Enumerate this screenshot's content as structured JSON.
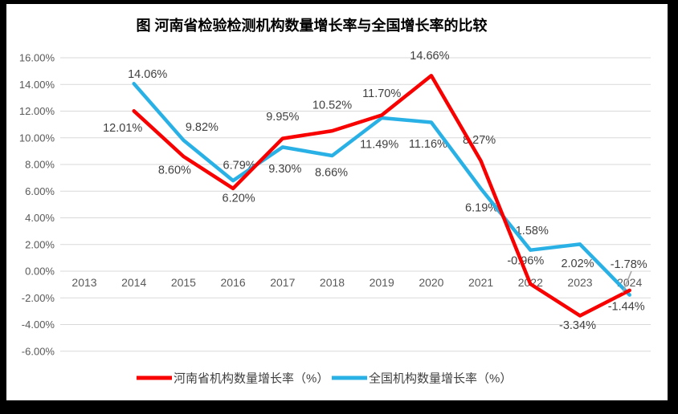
{
  "title": "图  河南省检验检测机构数量增长率与全国增长率的比较",
  "chart_data": {
    "type": "line",
    "categories": [
      "2013",
      "2014",
      "2015",
      "2016",
      "2017",
      "2018",
      "2019",
      "2020",
      "2021",
      "2022",
      "2023",
      "2024"
    ],
    "ylim": [
      -6,
      16
    ],
    "yticks": [
      16,
      14,
      12,
      10,
      8,
      6,
      4,
      2,
      0,
      -2,
      -4,
      -6
    ],
    "ytick_labels": [
      "16.00%",
      "14.00%",
      "12.00%",
      "10.00%",
      "8.00%",
      "6.00%",
      "4.00%",
      "2.00%",
      "0.00%",
      "-2.00%",
      "-4.00%",
      "-6.00%"
    ],
    "grid": true,
    "legend_position": "bottom",
    "series": [
      {
        "name": "河南省机构数量增长率（%）",
        "color": "#F80000",
        "values": [
          null,
          12.01,
          8.6,
          6.2,
          9.95,
          10.52,
          11.7,
          14.66,
          8.27,
          -0.96,
          -3.34,
          -1.44
        ],
        "point_labels": [
          null,
          "12.01%",
          "8.60%",
          "6.20%",
          "9.95%",
          "10.52%",
          "11.70%",
          "14.66%",
          "8.27%",
          "-0.96%",
          "-3.34%",
          "-1.44%"
        ],
        "label_offsets": [
          null,
          [
            -14,
            21
          ],
          [
            -11,
            17
          ],
          [
            7,
            12
          ],
          [
            0,
            -27
          ],
          [
            0,
            -32
          ],
          [
            0,
            -27
          ],
          [
            -2,
            -25
          ],
          [
            -2,
            -26
          ],
          [
            -6,
            -29
          ],
          [
            -3,
            12
          ],
          [
            -4,
            20
          ]
        ]
      },
      {
        "name": "全国机构数量增长率（%）",
        "color": "#29B1E6",
        "values": [
          null,
          14.06,
          9.82,
          6.79,
          9.3,
          8.66,
          11.49,
          11.16,
          6.19,
          1.58,
          2.02,
          -1.78
        ],
        "point_labels": [
          null,
          "14.06%",
          "9.82%",
          "6.79%",
          "9.30%",
          "8.66%",
          "11.49%",
          "11.16%",
          "6.19%",
          "1.58%",
          "2.02%",
          "-1.78%"
        ],
        "label_offsets": [
          null,
          [
            17,
            -12
          ],
          [
            23,
            -16
          ],
          [
            8,
            -19
          ],
          [
            3,
            27
          ],
          [
            -1,
            21
          ],
          [
            -3,
            33
          ],
          [
            -4,
            27
          ],
          [
            1,
            24
          ],
          [
            2,
            -24
          ],
          [
            -3,
            24
          ],
          [
            -1,
            -38
          ]
        ]
      }
    ],
    "colors": {
      "gridline": "#D9D9D9",
      "axis_label": "#595959",
      "data_label": "#404040",
      "title": "#000000",
      "frame": "#000000",
      "background": "#FFFFFF",
      "stray_mark": "#A6A6A6"
    }
  }
}
